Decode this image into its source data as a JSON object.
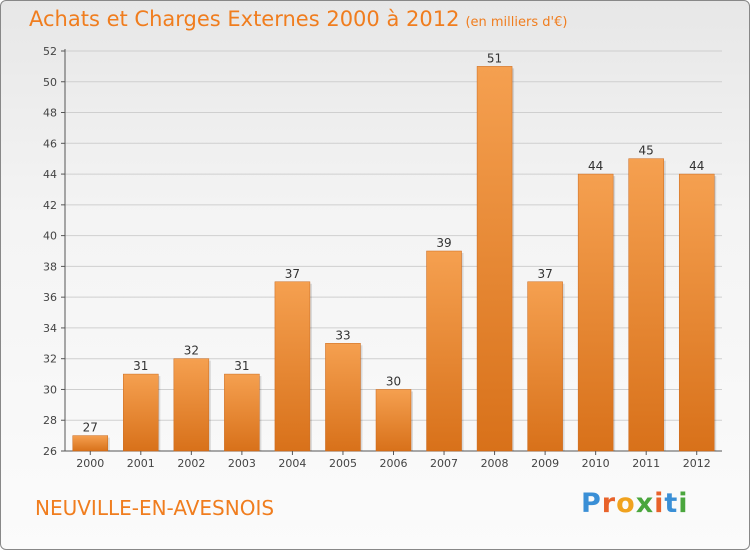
{
  "title": "Achats et Charges Externes 2000 à 2012",
  "subtitle": "(en milliers d'€)",
  "place": "NEUVILLE-EN-AVESNOIS",
  "logo": {
    "letters": [
      "P",
      "r",
      "o",
      "x",
      "i",
      "t",
      "i"
    ],
    "colors": [
      "#3a8fd6",
      "#e8622a",
      "#f0a21e",
      "#4aa63d",
      "#e8622a",
      "#3a8fd6",
      "#4aa63d"
    ]
  },
  "chart_data": {
    "type": "bar",
    "categories": [
      "2000",
      "2001",
      "2002",
      "2003",
      "2004",
      "2005",
      "2006",
      "2007",
      "2008",
      "2009",
      "2010",
      "2011",
      "2012"
    ],
    "values": [
      27,
      31,
      32,
      31,
      37,
      33,
      30,
      39,
      51,
      37,
      44,
      45,
      44
    ],
    "ylim": [
      26,
      52
    ],
    "yticks": [
      26,
      28,
      30,
      32,
      34,
      36,
      38,
      40,
      42,
      44,
      46,
      48,
      50,
      52
    ],
    "grid": true,
    "bar_color_top": "#f5a050",
    "bar_color_bottom": "#d8711a"
  }
}
